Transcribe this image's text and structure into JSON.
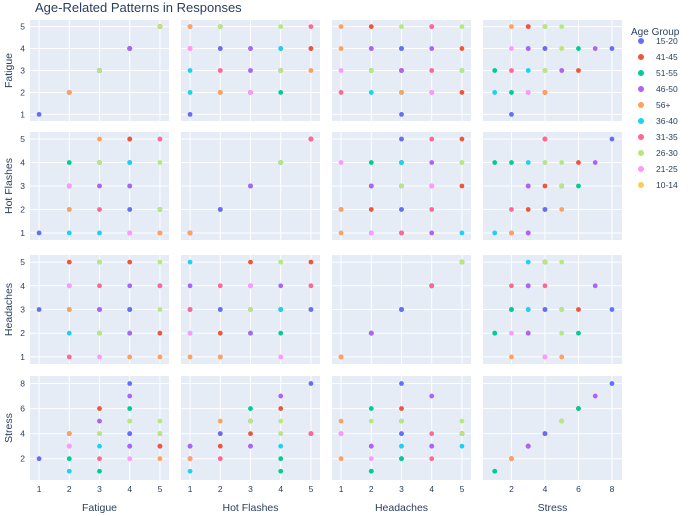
{
  "chart_data": {
    "type": "scatter",
    "title": "Age-Related Patterns in Responses",
    "variables": [
      "Fatigue",
      "Hot Flashes",
      "Headaches",
      "Stress"
    ],
    "legend_title": "Age Group",
    "legend_position": "right",
    "grid": true,
    "groups": [
      {
        "name": "15-20",
        "color": "#636efa"
      },
      {
        "name": "41-45",
        "color": "#ef553b"
      },
      {
        "name": "51-55",
        "color": "#00cc96"
      },
      {
        "name": "46-50",
        "color": "#ab63fa"
      },
      {
        "name": "56+",
        "color": "#ffa15a"
      },
      {
        "name": "36-40",
        "color": "#19d3f3"
      },
      {
        "name": "31-35",
        "color": "#ff6692"
      },
      {
        "name": "26-30",
        "color": "#b6e880"
      },
      {
        "name": "21-25",
        "color": "#ff97ff"
      },
      {
        "name": "10-14",
        "color": "#fecb52"
      }
    ],
    "axes": {
      "Fatigue": {
        "range": [
          0.7,
          5.3
        ],
        "ticks": [
          1,
          2,
          3,
          4,
          5
        ]
      },
      "Hot Flashes": {
        "range": [
          0.7,
          5.3
        ],
        "ticks": [
          1,
          2,
          3,
          4,
          5
        ]
      },
      "Headaches": {
        "range": [
          0.7,
          5.3
        ],
        "ticks": [
          1,
          2,
          3,
          4,
          5
        ]
      },
      "Stress": {
        "range": [
          0.3,
          8.6
        ],
        "ticks": [
          2,
          4,
          6,
          8
        ]
      }
    },
    "records": [
      {
        "g": "15-20",
        "v": [
          1,
          1,
          3,
          2
        ]
      },
      {
        "g": "41-45",
        "v": [
          2,
          3,
          5,
          4
        ]
      },
      {
        "g": "51-55",
        "v": [
          2,
          4,
          3,
          2
        ]
      },
      {
        "g": "46-50",
        "v": [
          2,
          3,
          4,
          3
        ]
      },
      {
        "g": "36-40",
        "v": [
          2,
          1,
          2,
          1
        ]
      },
      {
        "g": "31-35",
        "v": [
          2,
          2,
          1,
          4
        ]
      },
      {
        "g": "21-25",
        "v": [
          2,
          3,
          4,
          3
        ]
      },
      {
        "g": "51-55",
        "v": [
          3,
          4,
          2,
          1
        ]
      },
      {
        "g": "26-30",
        "v": [
          3,
          3,
          2,
          5
        ]
      },
      {
        "g": "56+",
        "v": [
          3,
          5,
          3,
          4
        ]
      },
      {
        "g": "41-45",
        "v": [
          3,
          4,
          3,
          6
        ]
      },
      {
        "g": "31-35",
        "v": [
          3,
          2,
          4,
          2
        ]
      },
      {
        "g": "36-40",
        "v": [
          3,
          1,
          5,
          3
        ]
      },
      {
        "g": "46-50",
        "v": [
          3,
          3,
          3,
          5
        ]
      },
      {
        "g": "21-25",
        "v": [
          3,
          4,
          1,
          4
        ]
      },
      {
        "g": "15-20",
        "v": [
          4,
          5,
          3,
          8
        ]
      },
      {
        "g": "46-50",
        "v": [
          4,
          4,
          4,
          7
        ]
      },
      {
        "g": "51-55",
        "v": [
          4,
          3,
          2,
          6
        ]
      },
      {
        "g": "56+",
        "v": [
          4,
          2,
          1,
          5
        ]
      },
      {
        "g": "41-45",
        "v": [
          4,
          5,
          5,
          4
        ]
      },
      {
        "g": "31-35",
        "v": [
          4,
          1,
          3,
          3
        ]
      },
      {
        "g": "26-30",
        "v": [
          4,
          3,
          3,
          5
        ]
      },
      {
        "g": "21-25",
        "v": [
          4,
          1,
          2,
          2
        ]
      },
      {
        "g": "36-40",
        "v": [
          4,
          4,
          3,
          3
        ]
      },
      {
        "g": "46-50",
        "v": [
          5,
          1,
          4,
          3
        ]
      },
      {
        "g": "26-30",
        "v": [
          5,
          4,
          5,
          5
        ]
      },
      {
        "g": "31-35",
        "v": [
          5,
          5,
          4,
          4
        ]
      },
      {
        "g": "41-45",
        "v": [
          5,
          2,
          2,
          3
        ]
      },
      {
        "g": "56+",
        "v": [
          5,
          1,
          1,
          2
        ]
      },
      {
        "g": "26-30",
        "v": [
          5,
          2,
          3,
          4
        ]
      },
      {
        "g": "26-30",
        "v": [
          3,
          4,
          5,
          4
        ]
      },
      {
        "g": "56+",
        "v": [
          2,
          2,
          3,
          4
        ]
      },
      {
        "g": "15-20",
        "v": [
          4,
          2,
          3,
          4
        ]
      },
      {
        "g": "46-50",
        "v": [
          4,
          3,
          2,
          3
        ]
      }
    ]
  }
}
